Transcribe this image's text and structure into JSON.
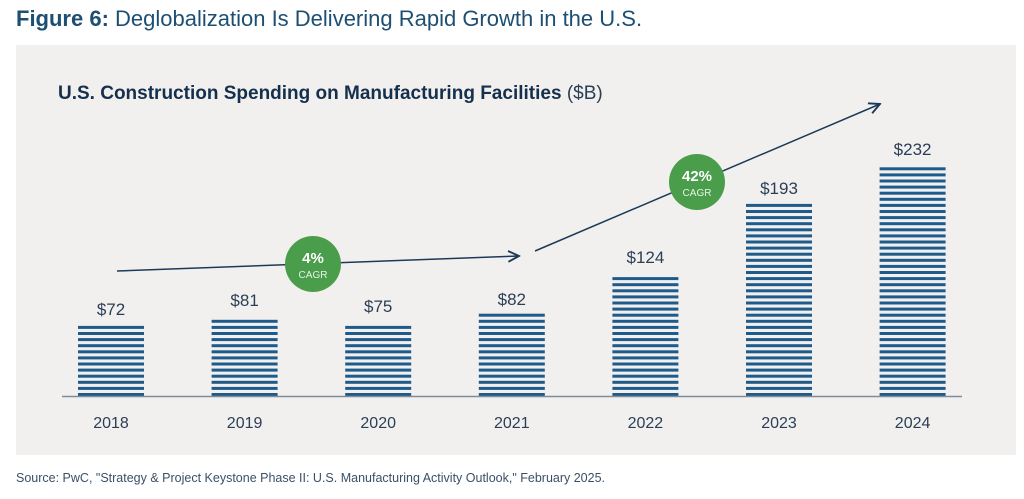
{
  "figure": {
    "label": "Figure 6:",
    "title": " Deglobalization Is Delivering Rapid Growth in the U.S."
  },
  "chart_data": {
    "type": "bar",
    "title": "U.S. Construction Spending on Manufacturing Facilities",
    "unit": "($B)",
    "xlabel": "",
    "ylabel": "",
    "categories": [
      "2018",
      "2019",
      "2020",
      "2021",
      "2022",
      "2023",
      "2024"
    ],
    "values": [
      72,
      81,
      75,
      82,
      124,
      193,
      232
    ],
    "value_labels": [
      "$72",
      "$81",
      "$75",
      "$82",
      "$124",
      "$193",
      "$232"
    ],
    "ylim": [
      0,
      232
    ],
    "grid": false,
    "legend": "none",
    "bar_color": "#1f5b8a",
    "annotations": [
      {
        "type": "trend-arrow",
        "from": "2018",
        "to": "2021",
        "value": "4%",
        "sublabel": "CAGR",
        "badge_color": "#4a9e4b"
      },
      {
        "type": "trend-arrow",
        "from": "2021",
        "to": "2024",
        "value": "42%",
        "sublabel": "CAGR",
        "badge_color": "#4a9e4b"
      }
    ]
  },
  "source": "Source: PwC, \"Strategy & Project Keystone Phase II: U.S. Manufacturing Activity Outlook,\" February 2025."
}
